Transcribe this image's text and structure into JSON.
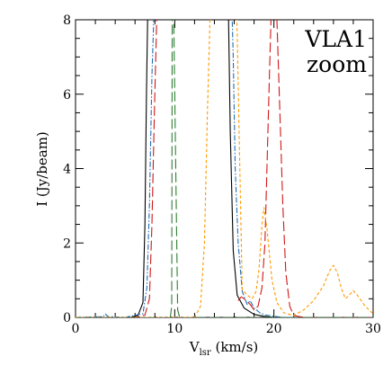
{
  "chart_data": {
    "type": "line",
    "title": "",
    "xlabel": "V",
    "xlabel_sub": "lsr",
    "xlabel_unit": " (km/s)",
    "ylabel": "I (Jy/beam)",
    "xlim": [
      0,
      30
    ],
    "ylim": [
      0,
      8
    ],
    "xticks": [
      0,
      10,
      20,
      30
    ],
    "yticks": [
      0,
      2,
      4,
      6,
      8
    ],
    "annotations": [
      "VLA1",
      "zoom"
    ],
    "grid": false,
    "series": [
      {
        "color": "#000000",
        "dash": "none",
        "x": [
          0,
          5.5,
          6.3,
          6.8,
          7.0,
          7.15,
          7.3,
          7.5,
          15.2,
          15.4,
          15.6,
          15.9,
          16.3,
          17.0,
          18.0,
          19.0,
          20.0,
          25,
          30
        ],
        "y": [
          0,
          0,
          0.05,
          0.4,
          2.5,
          6.0,
          8.5,
          9,
          9,
          8.5,
          5.0,
          1.8,
          0.6,
          0.25,
          0.08,
          0.03,
          0,
          0,
          0
        ]
      },
      {
        "color": "#1f6fb5",
        "dash": "6,2,1.5,2",
        "x": [
          0,
          2.8,
          3.0,
          3.3,
          5.0,
          6.8,
          7.2,
          7.45,
          7.7,
          8.0,
          15.7,
          15.9,
          16.1,
          16.4,
          16.8,
          17.3,
          17.6,
          18.0,
          18.6,
          19.2,
          20.0,
          21,
          25,
          30
        ],
        "y": [
          0,
          0.02,
          0.09,
          0.02,
          0,
          0.1,
          0.8,
          3.0,
          6.5,
          9,
          9,
          7.0,
          4.0,
          2.0,
          0.7,
          0.35,
          0.45,
          0.25,
          0.12,
          0.06,
          0.03,
          0,
          0,
          0
        ]
      },
      {
        "color": "#d01818",
        "dash": "11,4",
        "x": [
          0,
          6.0,
          7.0,
          7.45,
          7.7,
          7.95,
          8.2,
          8.5,
          19.9,
          20.3,
          20.6,
          20.9,
          21.2,
          21.6,
          22.0,
          23,
          30
        ],
        "y": [
          0,
          0,
          0.06,
          0.5,
          2.5,
          5.5,
          8.2,
          9,
          9,
          8.0,
          5.5,
          3.0,
          1.2,
          0.3,
          0.05,
          0,
          0
        ],
        "x2": [
          16.4,
          16.7,
          17.0,
          17.3,
          17.6,
          18.0,
          18.4,
          18.8,
          19.1,
          19.3,
          19.5,
          19.7,
          19.9
        ],
        "y2": [
          0.45,
          0.55,
          0.5,
          0.42,
          0.35,
          0.2,
          0.3,
          0.8,
          2.0,
          4.0,
          6.0,
          8.0,
          9
        ]
      },
      {
        "color": "#2e7d32",
        "dash": "11,4",
        "x": [
          0,
          9.55,
          9.7,
          9.75,
          9.85,
          10.3,
          10.5,
          30
        ],
        "y": [
          0,
          0,
          0.3,
          9,
          9,
          0.2,
          0,
          0
        ]
      },
      {
        "color": "#ff9900",
        "dash": "3.5,2.5",
        "x": [
          0,
          12.0,
          12.6,
          13.0,
          13.3,
          13.6,
          14.0,
          16.2,
          16.8,
          17.3,
          17.8,
          18.2,
          18.5,
          18.8,
          19.0,
          19.3,
          19.8,
          20.3,
          21.0,
          22.0,
          23.0,
          24.0,
          25.0,
          25.6,
          26.0,
          26.4,
          26.8,
          27.2,
          27.6,
          28.0,
          28.4,
          28.8,
          29.2,
          30.0
        ],
        "y": [
          0,
          0,
          0.3,
          2.0,
          5.5,
          8.5,
          9,
          9,
          0.75,
          0.6,
          0.5,
          0.7,
          1.3,
          2.5,
          2.95,
          2.4,
          1.0,
          0.4,
          0.12,
          0.05,
          0.2,
          0.45,
          0.85,
          1.25,
          1.4,
          1.2,
          0.78,
          0.5,
          0.6,
          0.72,
          0.6,
          0.45,
          0.3,
          0.1
        ]
      }
    ]
  }
}
